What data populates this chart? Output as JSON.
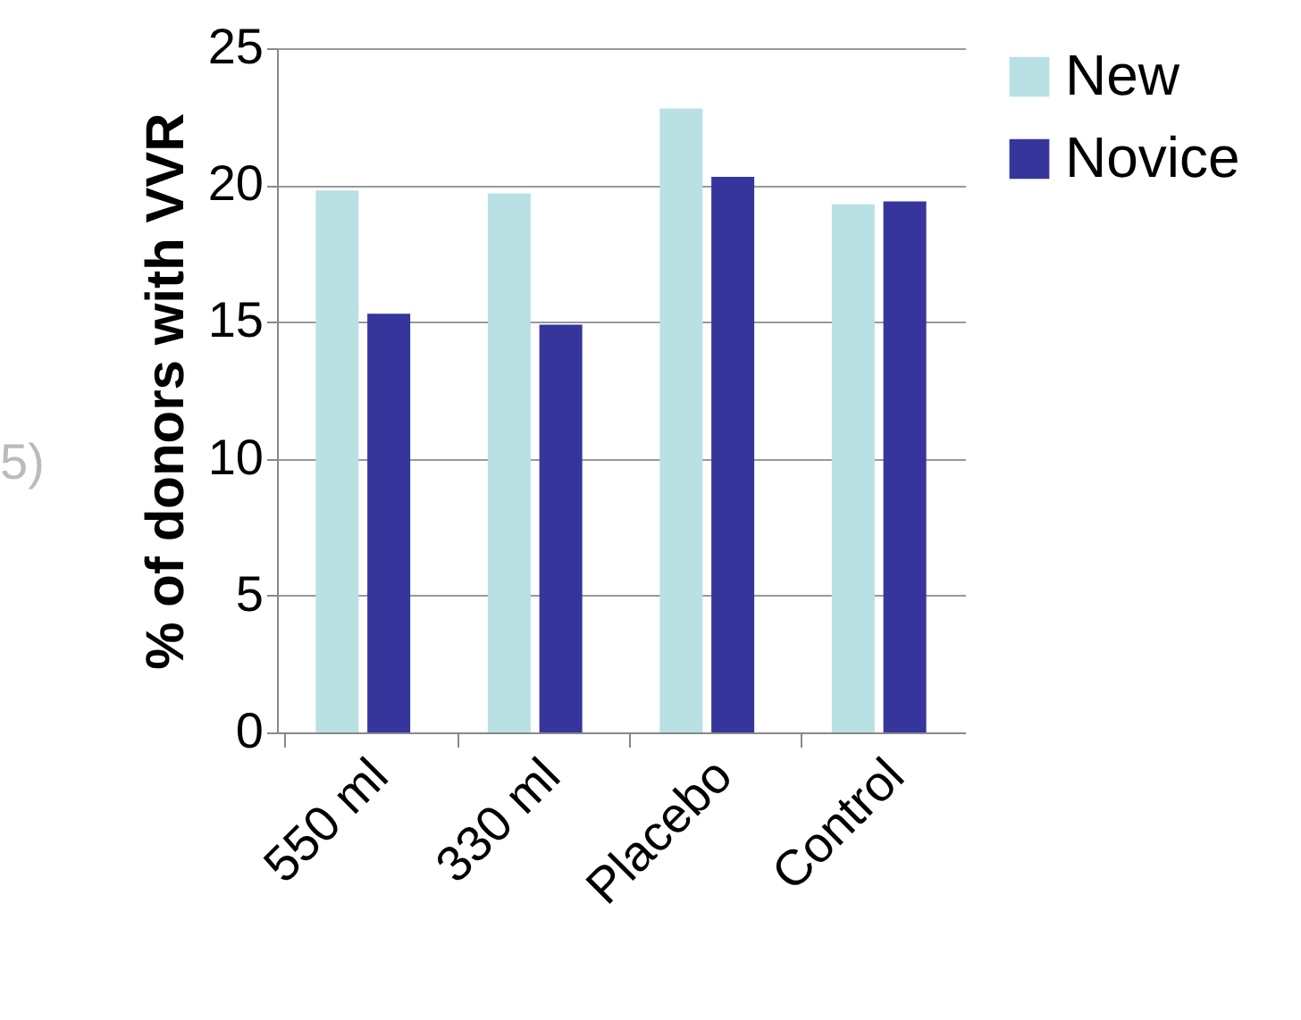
{
  "chart_data": {
    "type": "bar",
    "ylabel": "% of donors with VVR",
    "categories": [
      "550 ml",
      "330 ml",
      "Placebo",
      "Control"
    ],
    "series": [
      {
        "name": "New",
        "color": "#b9e0e3",
        "values": [
          19.8,
          19.7,
          22.8,
          19.3
        ]
      },
      {
        "name": "Novice",
        "color": "#35359b",
        "values": [
          15.3,
          14.9,
          20.3,
          19.4
        ]
      }
    ],
    "ylim": [
      0,
      25
    ],
    "yticks": [
      0,
      5,
      10,
      15,
      20,
      25
    ],
    "grid": "y",
    "legend": "right",
    "annotations": [
      "5)"
    ]
  }
}
